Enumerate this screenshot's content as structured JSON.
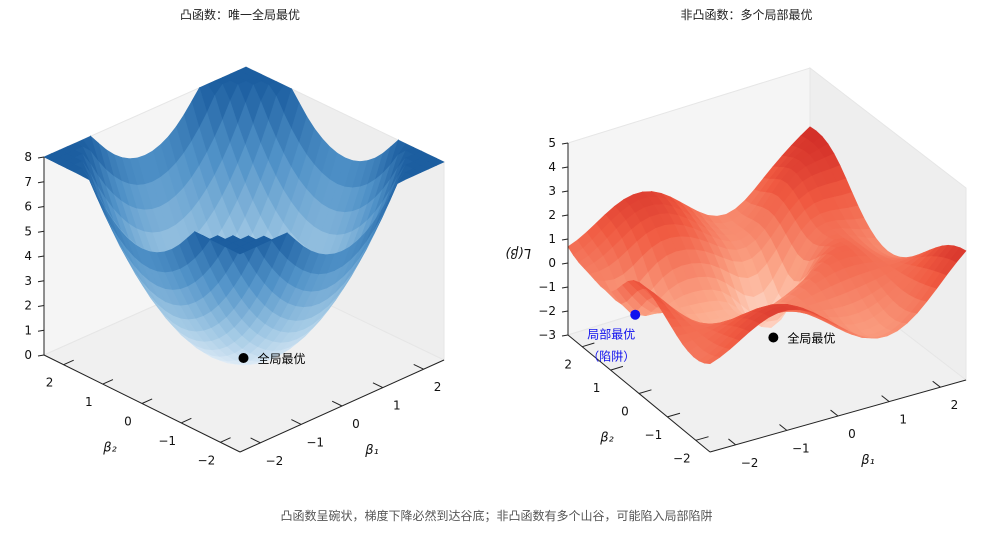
{
  "caption": "凸函数呈碗状，梯度下降必然到达谷底；非凸函数有多个山谷，可能陷入局部陷阱",
  "chart_data": [
    {
      "type": "surface",
      "title": "凸函数：唯一全局最优",
      "colormap": "Blues",
      "xlabel": "β₁",
      "ylabel": "β₂",
      "zlabel": "",
      "xlim": [
        -2.5,
        2.5
      ],
      "ylim": [
        -2.5,
        2.5
      ],
      "zlim": [
        0,
        8
      ],
      "xticks": [
        "−2",
        "−1",
        "0",
        "1",
        "2"
      ],
      "yticks": [
        "−2",
        "−1",
        "0",
        "1",
        "2"
      ],
      "zticks": [
        "0",
        "1",
        "2",
        "3",
        "4",
        "5",
        "6",
        "7",
        "8"
      ],
      "function": "β₁² + β₂²",
      "points": [
        {
          "label": "全局最优",
          "sublabel": "",
          "x": 0,
          "y": 0,
          "z": 0,
          "color": "#000000"
        }
      ]
    },
    {
      "type": "surface",
      "title": "非凸函数：多个局部最优",
      "colormap": "Reds",
      "xlabel": "β₁",
      "ylabel": "β₂",
      "zlabel": "L(β)",
      "xlim": [
        -2.5,
        2.5
      ],
      "ylim": [
        -2.5,
        2.5
      ],
      "zlim": [
        -3,
        5
      ],
      "xticks": [
        "−2",
        "−1",
        "0",
        "1",
        "2"
      ],
      "yticks": [
        "−2",
        "−1",
        "0",
        "1",
        "2"
      ],
      "zticks": [
        "−3",
        "−2",
        "−1",
        "0",
        "1",
        "2",
        "3",
        "4",
        "5"
      ],
      "function": "multi-modal",
      "points": [
        {
          "label": "局部最优",
          "sublabel": "（陷阱）",
          "x": -2,
          "y": 1,
          "z": -1,
          "color": "#1010ee"
        },
        {
          "label": "全局最优",
          "sublabel": "",
          "x": 0.5,
          "y": 0.5,
          "z": -3,
          "color": "#000000"
        }
      ]
    }
  ]
}
